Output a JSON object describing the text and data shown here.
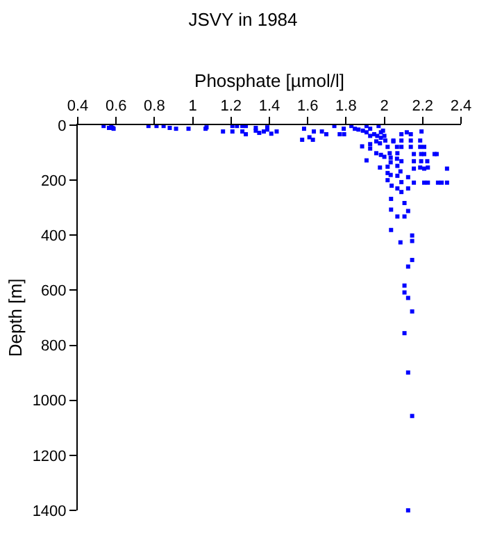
{
  "chart_data": {
    "type": "scatter",
    "title": "JSVY in 1984",
    "xlabel": "Phosphate [µmol/l]",
    "ylabel": "Depth [m]",
    "xlim": [
      0.4,
      2.4
    ],
    "xticks": [
      0.4,
      0.6,
      0.8,
      1,
      1.2,
      1.4,
      1.6,
      1.8,
      2,
      2.2,
      2.4
    ],
    "ylim": [
      1400,
      0
    ],
    "yticks": [
      0,
      200,
      400,
      600,
      800,
      1000,
      1200,
      1400
    ],
    "grid": false,
    "marker": "square",
    "series": [
      {
        "color": "#0000ff",
        "x": [
          0.535,
          0.563,
          0.582,
          0.575,
          0.587,
          0.769,
          0.811,
          0.848,
          0.88,
          0.913,
          0.978,
          1.067,
          1.072,
          1.158,
          1.207,
          1.231,
          1.259,
          1.277,
          1.207,
          1.259,
          1.277,
          1.329,
          1.329,
          1.347,
          1.371,
          1.389,
          1.389,
          1.41,
          1.438,
          1.571,
          1.581,
          1.609,
          1.627,
          1.632,
          1.674,
          1.697,
          1.739,
          1.767,
          1.79,
          1.788,
          1.828,
          1.846,
          1.865,
          1.888,
          1.907,
          1.907,
          1.926,
          1.947,
          1.97,
          1.982,
          1.993,
          1.926,
          1.963,
          1.982,
          2.0,
          1.884,
          1.926,
          1.926,
          1.958,
          1.977,
          2.005,
          2.017,
          1.907,
          1.958,
          1.982,
          2.0,
          2.028,
          2.047,
          2.066,
          2.089,
          2.068,
          2.033,
          2.066,
          2.089,
          1.977,
          2.017,
          2.033,
          2.068,
          2.017,
          2.033,
          2.017,
          2.038,
          2.068,
          2.084,
          2.089,
          2.068,
          2.089,
          2.124,
          2.124,
          2.089,
          2.117,
          2.138,
          2.194,
          2.047,
          2.089,
          2.138,
          2.187,
          2.138,
          2.187,
          2.208,
          2.154,
          2.192,
          2.208,
          2.262,
          2.273,
          2.154,
          2.192,
          2.224,
          2.154,
          2.187,
          2.208,
          2.227,
          2.327,
          2.154,
          2.208,
          2.227,
          2.28,
          2.299,
          2.327,
          2.035,
          2.105,
          2.035,
          2.124,
          2.068,
          2.105,
          2.035,
          2.145,
          2.145,
          2.084,
          2.145,
          2.124,
          2.105,
          2.105,
          2.124,
          2.145,
          2.105,
          2.124,
          2.145,
          2.124
        ],
        "values": [
          3,
          10,
          10,
          3,
          13,
          3,
          3,
          3,
          10,
          13,
          13,
          13,
          8,
          23,
          3,
          3,
          3,
          3,
          23,
          23,
          33,
          10,
          20,
          28,
          23,
          8,
          16,
          31,
          23,
          53,
          13,
          44,
          53,
          23,
          23,
          33,
          3,
          33,
          33,
          13,
          3,
          13,
          16,
          20,
          3,
          26,
          13,
          33,
          3,
          26,
          20,
          39,
          39,
          46,
          39,
          77,
          69,
          85,
          59,
          66,
          56,
          79,
          128,
          102,
          108,
          115,
          102,
          59,
          79,
          79,
          102,
          118,
          122,
          131,
          154,
          151,
          135,
          148,
          174,
          181,
          200,
          220,
          184,
          168,
          207,
          230,
          243,
          230,
          189,
          33,
          26,
          33,
          23,
          56,
          56,
          56,
          56,
          79,
          79,
          79,
          105,
          105,
          105,
          105,
          105,
          131,
          131,
          131,
          158,
          154,
          158,
          154,
          158,
          209,
          209,
          209,
          209,
          209,
          209,
          268,
          283,
          307,
          312,
          332,
          332,
          381,
          401,
          421,
          426,
          490,
          514,
          583,
          608,
          628,
          677,
          756,
          899,
          1057,
          1400
        ]
      }
    ]
  }
}
